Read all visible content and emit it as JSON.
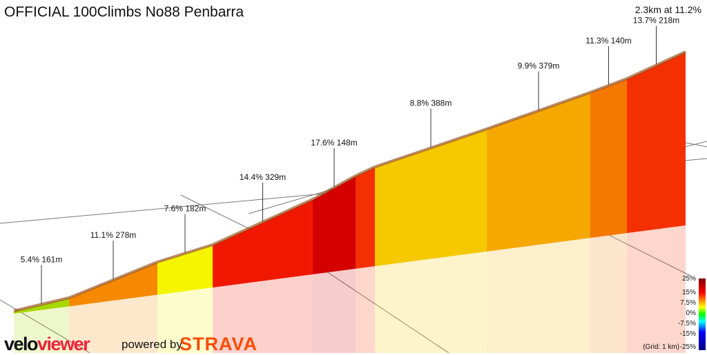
{
  "title": "OFFICIAL 100Climbs No88 Penbarra",
  "summary": "2.3km at 11.2%",
  "chart_data": {
    "type": "3d-elevation-profile",
    "segments": [
      {
        "label": "5.4% 161m",
        "gradient": 5.4,
        "length_m": 161,
        "color": "#a8d800"
      },
      {
        "label": "11.1% 278m",
        "gradient": 11.1,
        "length_m": 278,
        "color": "#f58a00"
      },
      {
        "label": "7.6% 182m",
        "gradient": 7.6,
        "length_m": 182,
        "color": "#f5f500"
      },
      {
        "label": "14.4% 329m",
        "gradient": 14.4,
        "length_m": 329,
        "color": "#f01800"
      },
      {
        "label": "17.6% 148m",
        "gradient": 17.6,
        "length_m": 148,
        "color": "#d40000"
      },
      {
        "label": "",
        "color": "#f53000"
      },
      {
        "label": "8.8% 388m",
        "gradient": 8.8,
        "length_m": 388,
        "color": "#f5c800"
      },
      {
        "label": "9.9% 379m",
        "gradient": 9.9,
        "length_m": 379,
        "color": "#f5a800"
      },
      {
        "label": "11.3% 140m",
        "gradient": 11.3,
        "length_m": 140,
        "color": "#f57800"
      },
      {
        "label": "13.7% 218m",
        "gradient": 13.7,
        "length_m": 218,
        "color": "#f53000"
      }
    ],
    "legend": {
      "ticks": [
        "25%",
        "15%",
        "7.5%",
        "0%",
        "-7.5%",
        "-15%",
        "-25%"
      ],
      "grid_note": "(Grid: 1 km)"
    }
  },
  "branding": {
    "logo_a": "velo",
    "logo_b": "viewer",
    "powered_by": "powered by",
    "strava": "STRAVA"
  }
}
